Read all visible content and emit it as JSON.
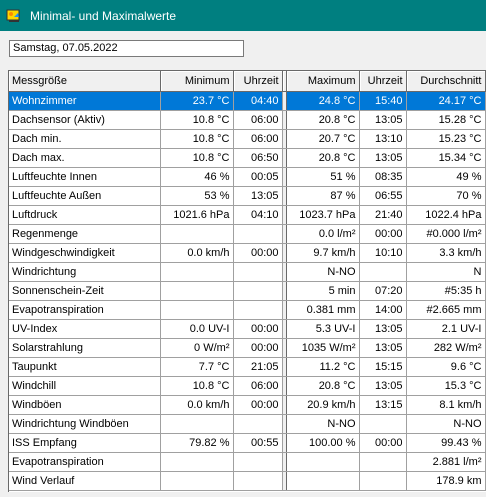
{
  "window": {
    "title": "Minimal- und Maximalwerte",
    "app_icon": "weather-station-icon"
  },
  "date_field": {
    "value": "Samstag, 07.05.2022"
  },
  "table": {
    "headers": {
      "name": "Messgröße",
      "min": "Minimum",
      "min_time": "Uhrzeit",
      "max": "Maximum",
      "max_time": "Uhrzeit",
      "avg": "Durchschnitt"
    },
    "selected_row": 0,
    "rows": [
      {
        "name": "Wohnzimmer",
        "min": "23.7 °C",
        "min_time": "04:40",
        "max": "24.8 °C",
        "max_time": "15:40",
        "avg": "24.17 °C"
      },
      {
        "name": "Dachsensor (Aktiv)",
        "min": "10.8 °C",
        "min_time": "06:00",
        "max": "20.8 °C",
        "max_time": "13:05",
        "avg": "15.28 °C"
      },
      {
        "name": "Dach min.",
        "min": "10.8 °C",
        "min_time": "06:00",
        "max": "20.7 °C",
        "max_time": "13:10",
        "avg": "15.23 °C"
      },
      {
        "name": "Dach max.",
        "min": "10.8 °C",
        "min_time": "06:50",
        "max": "20.8 °C",
        "max_time": "13:05",
        "avg": "15.34 °C"
      },
      {
        "name": "Luftfeuchte Innen",
        "min": "46 %",
        "min_time": "00:05",
        "max": "51 %",
        "max_time": "08:35",
        "avg": "49 %"
      },
      {
        "name": "Luftfeuchte Außen",
        "min": "53 %",
        "min_time": "13:05",
        "max": "87 %",
        "max_time": "06:55",
        "avg": "70 %"
      },
      {
        "name": "Luftdruck",
        "min": "1021.6 hPa",
        "min_time": "04:10",
        "max": "1023.7 hPa",
        "max_time": "21:40",
        "avg": "1022.4 hPa"
      },
      {
        "name": "Regenmenge",
        "min": "",
        "min_time": "",
        "max": "0.0 l/m²",
        "max_time": "00:00",
        "avg": "#0.000 l/m²"
      },
      {
        "name": "Windgeschwindigkeit",
        "min": "0.0 km/h",
        "min_time": "00:00",
        "max": "9.7 km/h",
        "max_time": "10:10",
        "avg": "3.3 km/h"
      },
      {
        "name": "Windrichtung",
        "min": "",
        "min_time": "",
        "max": "N-NO",
        "max_time": "",
        "avg": "N"
      },
      {
        "name": "Sonnenschein-Zeit",
        "min": "",
        "min_time": "",
        "max": "5 min",
        "max_time": "07:20",
        "avg": "#5:35 h"
      },
      {
        "name": "Evapotranspiration",
        "min": "",
        "min_time": "",
        "max": "0.381 mm",
        "max_time": "14:00",
        "avg": "#2.665 mm"
      },
      {
        "name": "UV-Index",
        "min": "0.0 UV-I",
        "min_time": "00:00",
        "max": "5.3 UV-I",
        "max_time": "13:05",
        "avg": "2.1 UV-I"
      },
      {
        "name": "Solarstrahlung",
        "min": "0 W/m²",
        "min_time": "00:00",
        "max": "1035 W/m²",
        "max_time": "13:05",
        "avg": "282 W/m²"
      },
      {
        "name": "Taupunkt",
        "min": "7.7 °C",
        "min_time": "21:05",
        "max": "11.2 °C",
        "max_time": "15:15",
        "avg": "9.6 °C"
      },
      {
        "name": "Windchill",
        "min": "10.8 °C",
        "min_time": "06:00",
        "max": "20.8 °C",
        "max_time": "13:05",
        "avg": "15.3 °C"
      },
      {
        "name": "Windböen",
        "min": "0.0 km/h",
        "min_time": "00:00",
        "max": "20.9 km/h",
        "max_time": "13:15",
        "avg": "8.1 km/h"
      },
      {
        "name": "Windrichtung Windböen",
        "min": "",
        "min_time": "",
        "max": "N-NO",
        "max_time": "",
        "avg": "N-NO"
      },
      {
        "name": "ISS Empfang",
        "min": "79.82 %",
        "min_time": "00:55",
        "max": "100.00 %",
        "max_time": "00:00",
        "avg": "99.43 %"
      },
      {
        "name": "Evapotranspiration",
        "min": "",
        "min_time": "",
        "max": "",
        "max_time": "",
        "avg": "2.881 l/m²"
      },
      {
        "name": "Wind Verlauf",
        "min": "",
        "min_time": "",
        "max": "",
        "max_time": "",
        "avg": "178.9 km"
      }
    ]
  },
  "colors": {
    "titlebar": "#007f80",
    "selection": "#0078d7"
  }
}
